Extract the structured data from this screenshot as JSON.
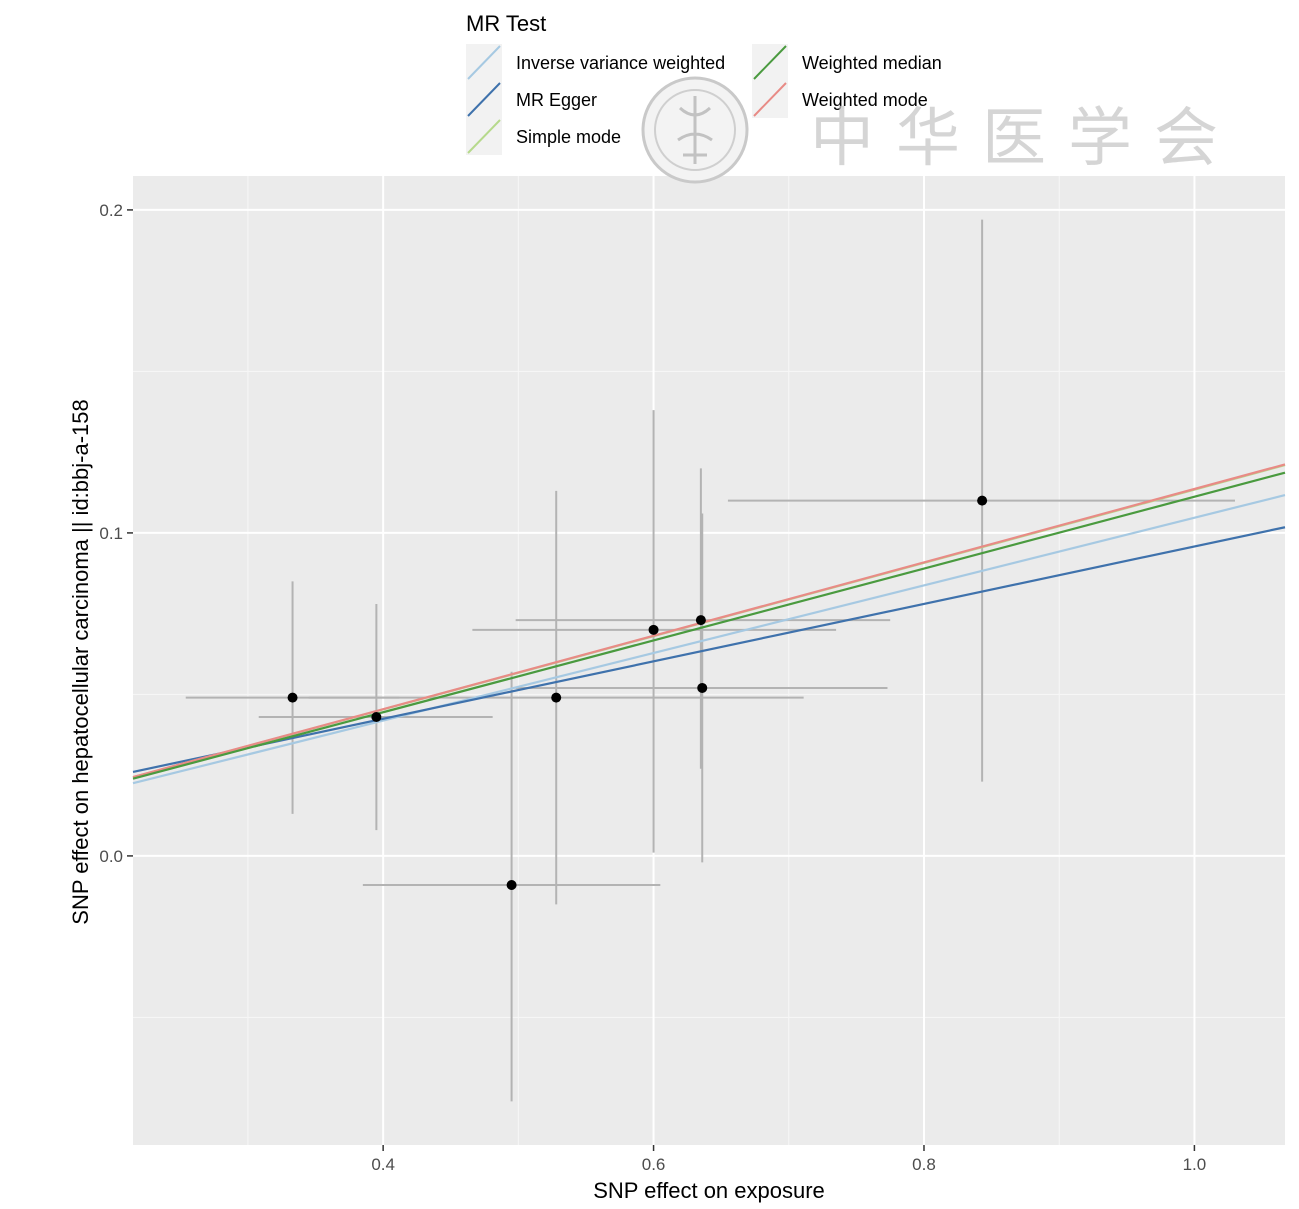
{
  "chart_data": {
    "type": "scatter",
    "xlabel": "SNP effect on exposure",
    "ylabel": "SNP effect on hepatocellular carcinoma || id:bbj-a-158",
    "xlim": [
      0.215,
      1.067
    ],
    "ylim": [
      -0.0895,
      0.2105
    ],
    "x_ticks": [
      0.4,
      0.6,
      0.8,
      1.0
    ],
    "x_tick_labels": [
      "0.4",
      "0.6",
      "0.8",
      "1.0"
    ],
    "x_minor_ticks": [
      0.3,
      0.5,
      0.7,
      0.9
    ],
    "y_ticks": [
      0.0,
      0.1,
      0.2
    ],
    "y_tick_labels": [
      "0.0",
      "0.1",
      "0.2"
    ],
    "y_minor_ticks": [
      -0.05,
      0.05,
      0.15
    ],
    "grid": true,
    "legend_position": "top",
    "points": [
      {
        "x": 0.333,
        "y": 0.049,
        "x_lo": 0.254,
        "x_hi": 0.412,
        "y_lo": 0.013,
        "y_hi": 0.085
      },
      {
        "x": 0.395,
        "y": 0.043,
        "x_lo": 0.308,
        "x_hi": 0.481,
        "y_lo": 0.008,
        "y_hi": 0.078
      },
      {
        "x": 0.495,
        "y": -0.009,
        "x_lo": 0.385,
        "x_hi": 0.605,
        "y_lo": -0.076,
        "y_hi": 0.057
      },
      {
        "x": 0.528,
        "y": 0.049,
        "x_lo": 0.345,
        "x_hi": 0.711,
        "y_lo": -0.015,
        "y_hi": 0.113
      },
      {
        "x": 0.6,
        "y": 0.07,
        "x_lo": 0.466,
        "x_hi": 0.735,
        "y_lo": 0.001,
        "y_hi": 0.138
      },
      {
        "x": 0.635,
        "y": 0.073,
        "x_lo": 0.498,
        "x_hi": 0.775,
        "y_lo": 0.027,
        "y_hi": 0.12
      },
      {
        "x": 0.636,
        "y": 0.052,
        "x_lo": 0.498,
        "x_hi": 0.773,
        "y_lo": -0.002,
        "y_hi": 0.106
      },
      {
        "x": 0.843,
        "y": 0.11,
        "x_lo": 0.655,
        "x_hi": 1.03,
        "y_lo": 0.023,
        "y_hi": 0.197
      }
    ],
    "series": [
      {
        "name": "Inverse variance weighted",
        "color": "#a6c9e2",
        "slope": 0.1047,
        "intercept": 0.0
      },
      {
        "name": "MR Egger",
        "color": "#3f72ac",
        "slope": 0.0889,
        "intercept": 0.0069
      },
      {
        "name": "Simple mode",
        "color": "#b6d98c",
        "slope": 0.1134,
        "intercept": 0.0
      },
      {
        "name": "Weighted median",
        "color": "#4a9a3f",
        "slope": 0.1112,
        "intercept": 0.0
      },
      {
        "name": "Weighted mode",
        "color": "#e88b86",
        "slope": 0.1136,
        "intercept": 0.0
      }
    ],
    "legend_title": "MR Test"
  },
  "colors": {
    "panel_background": "#ebebeb",
    "grid_major": "#ffffff",
    "error_bar": "#b3b3b3",
    "point": "#000000",
    "legend_key": "#f2f2f2"
  },
  "watermark": {
    "text": "中华医学会"
  }
}
